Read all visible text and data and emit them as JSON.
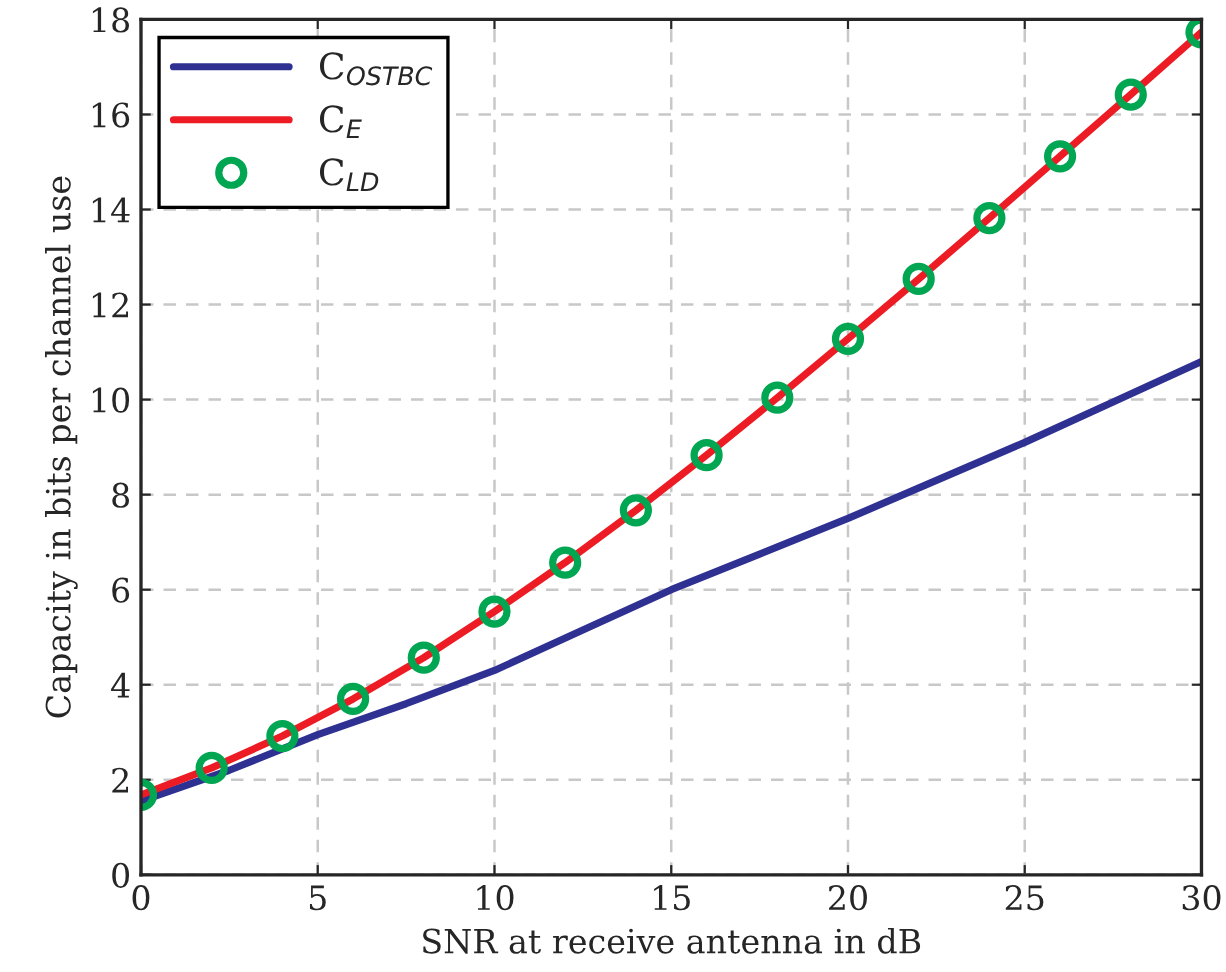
{
  "chart_data": {
    "type": "line",
    "xlabel": "SNR at receive antenna in dB",
    "ylabel": "Capacity in bits per channel use",
    "xlim": [
      0,
      30
    ],
    "ylim": [
      0,
      18
    ],
    "xticks": [
      0,
      5,
      10,
      15,
      20,
      25,
      30
    ],
    "yticks": [
      0,
      2,
      4,
      6,
      8,
      10,
      12,
      14,
      16,
      18
    ],
    "grid": true,
    "legend": "top left",
    "series": [
      {
        "name": "C$_{OSTBC}$",
        "color": "#2e3192",
        "marker": "none",
        "x": [
          0,
          2.5,
          5,
          7.5,
          10,
          12.5,
          15,
          17.5,
          20,
          22.5,
          25,
          27.5,
          30
        ],
        "values": [
          1.55,
          2.2,
          2.95,
          3.6,
          4.3,
          5.15,
          6.0,
          6.75,
          7.5,
          8.3,
          9.1,
          9.95,
          10.8
        ]
      },
      {
        "name": "C$_{E}$",
        "color": "#ed1c24",
        "marker": "none",
        "x": [
          0,
          2,
          4,
          6,
          8,
          10,
          12,
          14,
          16,
          18,
          20,
          22,
          24,
          26,
          28,
          30
        ],
        "values": [
          1.68,
          2.25,
          2.92,
          3.7,
          4.57,
          5.54,
          6.57,
          7.67,
          8.83,
          10.04,
          11.28,
          12.54,
          13.82,
          15.12,
          16.42,
          17.73
        ]
      },
      {
        "name": "C$_{LD}$",
        "color": "#00a651",
        "type": "scatter",
        "marker": "circle",
        "x": [
          0,
          2,
          4,
          6,
          8,
          10,
          12,
          14,
          16,
          18,
          20,
          22,
          24,
          26,
          28,
          30
        ],
        "values": [
          1.68,
          2.25,
          2.92,
          3.7,
          4.57,
          5.54,
          6.57,
          7.67,
          8.83,
          10.04,
          11.28,
          12.54,
          13.82,
          15.12,
          16.42,
          17.73
        ]
      }
    ]
  }
}
